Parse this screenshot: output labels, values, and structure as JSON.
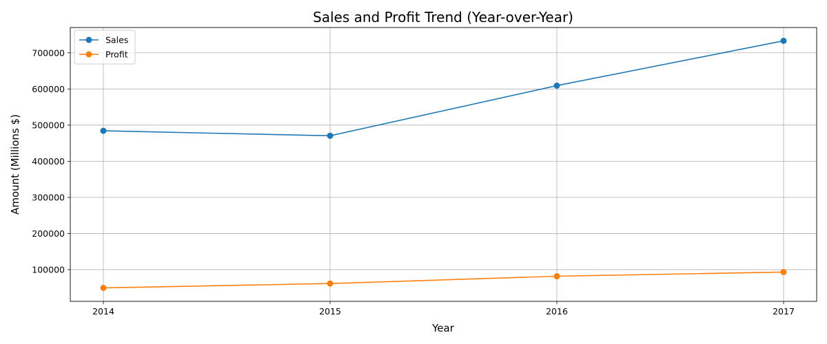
{
  "chart_data": {
    "type": "line",
    "title": "Sales and Profit Trend (Year-over-Year)",
    "xlabel": "Year",
    "ylabel": "Amount (Millions $)",
    "x": [
      "2014",
      "2015",
      "2016",
      "2017"
    ],
    "series": [
      {
        "name": "Sales",
        "color": "#1f77b4",
        "marker": "circle",
        "values": [
          484247,
          470533,
          609206,
          733215
        ]
      },
      {
        "name": "Profit",
        "color": "#ff7f0e",
        "marker": "circle",
        "values": [
          49544,
          61619,
          81795,
          93439
        ]
      }
    ],
    "ylim": [
      12336,
      770000
    ],
    "yticks": [
      100000,
      200000,
      300000,
      400000,
      500000,
      600000,
      700000
    ],
    "ytick_labels": [
      "100000",
      "200000",
      "300000",
      "400000",
      "500000",
      "600000",
      "700000"
    ],
    "grid": true,
    "legend_position": "upper-left"
  }
}
